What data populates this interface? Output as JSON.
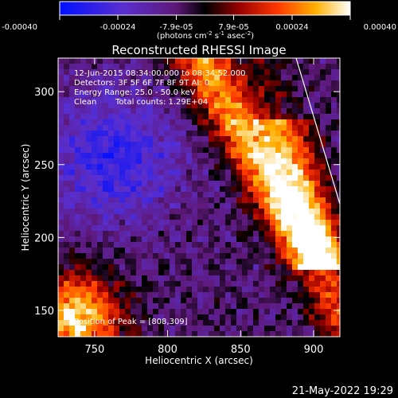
{
  "chart_data": {
    "type": "heatmap",
    "title": "Reconstructed RHESSI Image",
    "xlabel": "Heliocentric X (arcsec)",
    "ylabel": "Heliocentric Y (arcsec)",
    "x_range": [
      725,
      918
    ],
    "y_range": [
      132,
      323
    ],
    "x_ticks": [
      750,
      800,
      850,
      900
    ],
    "y_ticks": [
      150,
      200,
      250,
      300
    ],
    "colorbar": {
      "ticks": [
        {
          "value": -0.0004,
          "label": "-0.00040"
        },
        {
          "value": -0.00024,
          "label": "-0.00024"
        },
        {
          "value": -7.9e-05,
          "label": "-7.9e-05"
        },
        {
          "value": 7.9e-05,
          "label": "7.9e-05"
        },
        {
          "value": 0.00024,
          "label": "0.00024"
        },
        {
          "value": 0.0004,
          "label": "0.00040"
        }
      ],
      "range": [
        -0.0004,
        0.0004
      ],
      "unit_base": "(photons cm",
      "unit_exp1": "-2",
      "unit_mid": " s",
      "unit_exp2": "-1",
      "unit_mid2": " asec",
      "unit_exp3": "-2",
      "unit_end": ")"
    },
    "annotations": {
      "time": "12-Jun-2015 08:34:00.000 to 08:34:52.000",
      "detectors": "Detectors: 3F 5F 6F 7F 8F 9T AI: 0",
      "energy": "Energy Range: 25.0 - 50.0 keV",
      "clean": "Clean",
      "counts": "Total counts: 1.29E+04",
      "peak": "Position of Peak = [808,309]"
    },
    "peak": [
      808,
      309
    ],
    "limb_line": [
      [
        888,
        323
      ],
      [
        918,
        223
      ]
    ],
    "grid": false
  },
  "footer": {
    "timestamp": "21-May-2022 19:29"
  }
}
